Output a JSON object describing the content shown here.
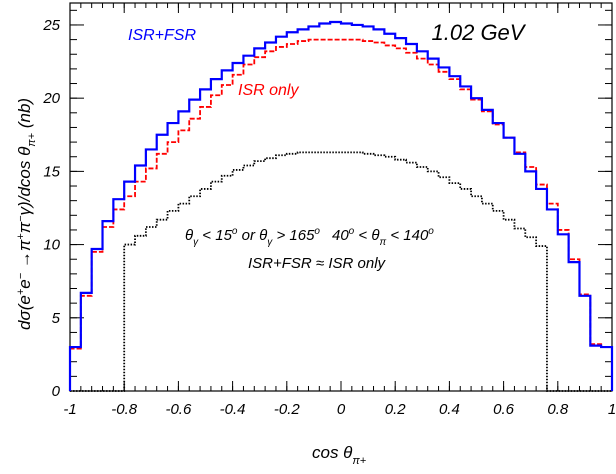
{
  "chart_data": {
    "type": "line",
    "energy_label": "1.02 GeV",
    "xlim": [
      -1,
      1
    ],
    "ylim": [
      0,
      26.5
    ],
    "x_ticks": [
      -1,
      -0.8,
      -0.6,
      -0.4,
      -0.2,
      0,
      0.2,
      0.4,
      0.6,
      0.8,
      1
    ],
    "x_tick_labels": [
      "-1",
      "-0.8",
      "-0.6",
      "-0.4",
      "-0.2",
      "0",
      "0.2",
      "0.4",
      "0.6",
      "0.8",
      "1"
    ],
    "y_ticks": [
      0,
      5,
      10,
      15,
      20,
      25
    ],
    "y_tick_labels": [
      "0",
      "5",
      "10",
      "15",
      "20",
      "25"
    ],
    "annotations": {
      "series1": "ISR+FSR",
      "series2": "ISR only",
      "cut_a_1": "θ",
      "cut_a_2": "γ",
      "cut_a_3": " < 15",
      "cut_a_4": "o",
      "cut_a_5": " or θ",
      "cut_a_6": "γ",
      "cut_a_7": " > 165",
      "cut_a_8": "o",
      "cut_b_1": "40",
      "cut_b_2": "o",
      "cut_b_3": " < θ",
      "cut_b_4": "π",
      "cut_b_5": " < 140",
      "cut_b_6": "o",
      "relation": "ISR+FSR ≈ ISR only"
    },
    "ylabel_parts": {
      "p1": "dσ(e",
      "p2": "+",
      "p3": "e",
      "p4": "−",
      "p5": " →π",
      "p6": "+",
      "p7": "π",
      "p8": "−",
      "p9": "γ)/dcos θ",
      "p10": "π+",
      "p11": "  (nb)"
    },
    "xlabel_parts": {
      "p1": "cos θ",
      "p2": "π+"
    },
    "bin_edges": [
      -1,
      -0.96,
      -0.92,
      -0.88,
      -0.84,
      -0.8,
      -0.76,
      -0.72,
      -0.68,
      -0.64,
      -0.6,
      -0.56,
      -0.52,
      -0.48,
      -0.44,
      -0.4,
      -0.36,
      -0.32,
      -0.28,
      -0.24,
      -0.2,
      -0.16,
      -0.12,
      -0.08,
      -0.04,
      0,
      0.04,
      0.08,
      0.12,
      0.16,
      0.2,
      0.24,
      0.28,
      0.32,
      0.36,
      0.4,
      0.44,
      0.48,
      0.52,
      0.56,
      0.6,
      0.64,
      0.68,
      0.72,
      0.76,
      0.8,
      0.84,
      0.88,
      0.92,
      0.96,
      1
    ],
    "series": [
      {
        "name": "ISR+FSR",
        "color": "#0000ff",
        "style": "solid",
        "values": [
          3.0,
          6.7,
          9.7,
          11.6,
          13.1,
          14.3,
          15.4,
          16.5,
          17.5,
          18.3,
          19.1,
          19.9,
          20.6,
          21.3,
          21.9,
          22.4,
          22.9,
          23.4,
          23.8,
          24.2,
          24.5,
          24.7,
          24.9,
          25.1,
          25.2,
          25.1,
          25.0,
          24.9,
          24.7,
          24.4,
          24.1,
          23.7,
          23.2,
          22.7,
          22.1,
          21.5,
          20.8,
          20.0,
          19.2,
          18.3,
          17.3,
          16.2,
          15.0,
          13.8,
          12.4,
          10.7,
          8.8,
          6.5,
          3.1,
          3.0
        ]
      },
      {
        "name": "ISR only",
        "color": "#ff0000",
        "style": "dashed",
        "values": [
          2.9,
          6.5,
          9.5,
          11.2,
          12.4,
          13.3,
          14.3,
          15.2,
          16.2,
          17.0,
          17.8,
          18.6,
          19.4,
          20.2,
          20.9,
          21.6,
          22.3,
          22.8,
          23.2,
          23.5,
          23.7,
          23.9,
          24.0,
          24.0,
          24.0,
          24.0,
          24.0,
          23.9,
          23.8,
          23.6,
          23.4,
          23.1,
          22.7,
          22.3,
          21.8,
          21.3,
          20.6,
          19.9,
          19.1,
          18.2,
          17.3,
          16.3,
          15.3,
          14.1,
          12.8,
          11.0,
          9.0,
          6.6,
          3.2,
          3.0
        ]
      },
      {
        "name": "cut",
        "color": "#000000",
        "style": "dotted",
        "values": [
          0,
          0,
          0,
          0,
          0,
          10.0,
          10.6,
          11.2,
          11.7,
          12.3,
          12.8,
          13.3,
          13.8,
          14.3,
          14.7,
          15.1,
          15.4,
          15.7,
          15.9,
          16.1,
          16.2,
          16.3,
          16.3,
          16.3,
          16.3,
          16.3,
          16.3,
          16.2,
          16.1,
          16.0,
          15.8,
          15.6,
          15.3,
          15.0,
          14.6,
          14.2,
          13.8,
          13.3,
          12.8,
          12.3,
          11.7,
          11.1,
          10.5,
          9.9,
          0,
          0,
          0,
          0,
          0,
          0
        ]
      }
    ]
  }
}
